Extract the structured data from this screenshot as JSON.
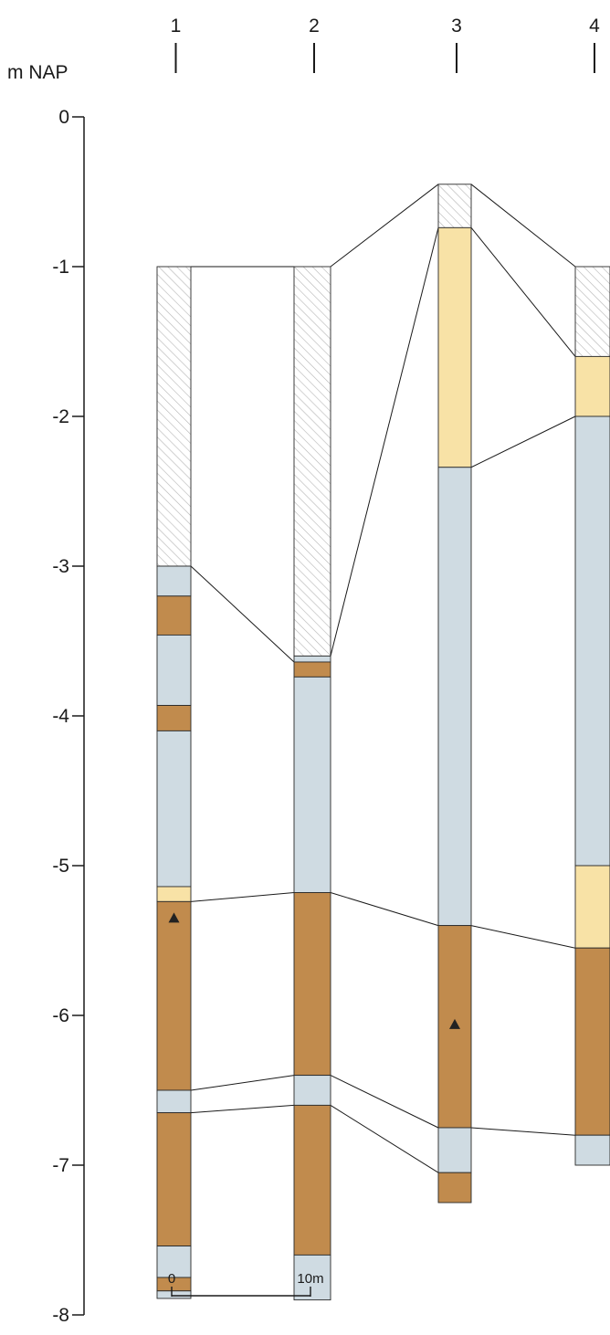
{
  "axis": {
    "unit": "m NAP",
    "ticks": [
      {
        "value": 0,
        "label": "0"
      },
      {
        "value": -1,
        "label": "-1"
      },
      {
        "value": -2,
        "label": "-2"
      },
      {
        "value": -3,
        "label": "-3"
      },
      {
        "value": -4,
        "label": "-4"
      },
      {
        "value": -5,
        "label": "-5"
      },
      {
        "value": -6,
        "label": "-6"
      },
      {
        "value": -7,
        "label": "-7"
      },
      {
        "value": -8,
        "label": "-8"
      }
    ]
  },
  "colors": {
    "hatched": "#ffffff",
    "hatch_line": "#b8b8b8",
    "sand_yellow": "#f8e2a6",
    "clay_blue": "#cfdbe2",
    "peat_brown": "#c18b4d",
    "outline": "#2a2a2a"
  },
  "borings": [
    {
      "label": "1",
      "layers": [
        {
          "top": -1.0,
          "bottom": -3.0,
          "type": "hatched"
        },
        {
          "top": -3.0,
          "bottom": -3.2,
          "type": "clay_blue"
        },
        {
          "top": -3.2,
          "bottom": -3.46,
          "type": "peat_brown"
        },
        {
          "top": -3.46,
          "bottom": -3.93,
          "type": "clay_blue"
        },
        {
          "top": -3.93,
          "bottom": -4.1,
          "type": "peat_brown"
        },
        {
          "top": -4.1,
          "bottom": -5.14,
          "type": "clay_blue"
        },
        {
          "top": -5.14,
          "bottom": -5.24,
          "type": "sand_yellow"
        },
        {
          "top": -5.24,
          "bottom": -6.5,
          "type": "peat_brown"
        },
        {
          "top": -6.5,
          "bottom": -6.65,
          "type": "clay_blue"
        },
        {
          "top": -6.65,
          "bottom": -7.54,
          "type": "peat_brown"
        },
        {
          "top": -7.54,
          "bottom": -7.75,
          "type": "clay_blue"
        },
        {
          "top": -7.75,
          "bottom": -7.84,
          "type": "peat_brown"
        },
        {
          "top": -7.84,
          "bottom": -7.89,
          "type": "clay_blue"
        }
      ],
      "markers": [
        -5.35
      ]
    },
    {
      "label": "2",
      "layers": [
        {
          "top": -1.0,
          "bottom": -3.6,
          "type": "hatched"
        },
        {
          "top": -3.6,
          "bottom": -3.64,
          "type": "clay_blue"
        },
        {
          "top": -3.64,
          "bottom": -3.74,
          "type": "peat_brown"
        },
        {
          "top": -3.74,
          "bottom": -5.18,
          "type": "clay_blue"
        },
        {
          "top": -5.18,
          "bottom": -6.4,
          "type": "peat_brown"
        },
        {
          "top": -6.4,
          "bottom": -6.6,
          "type": "clay_blue"
        },
        {
          "top": -6.6,
          "bottom": -7.6,
          "type": "peat_brown"
        },
        {
          "top": -7.6,
          "bottom": -7.9,
          "type": "clay_blue"
        }
      ],
      "markers": []
    },
    {
      "label": "3",
      "layers": [
        {
          "top": -0.45,
          "bottom": -0.74,
          "type": "hatched"
        },
        {
          "top": -0.74,
          "bottom": -2.34,
          "type": "sand_yellow"
        },
        {
          "top": -2.34,
          "bottom": -5.4,
          "type": "clay_blue"
        },
        {
          "top": -5.4,
          "bottom": -6.75,
          "type": "peat_brown"
        },
        {
          "top": -6.75,
          "bottom": -7.05,
          "type": "clay_blue"
        },
        {
          "top": -7.05,
          "bottom": -7.25,
          "type": "peat_brown"
        }
      ],
      "markers": [
        -6.06
      ]
    },
    {
      "label": "4",
      "layers": [
        {
          "top": -1.0,
          "bottom": -1.6,
          "type": "hatched"
        },
        {
          "top": -1.6,
          "bottom": -2.0,
          "type": "sand_yellow"
        },
        {
          "top": -2.0,
          "bottom": -5.0,
          "type": "clay_blue"
        },
        {
          "top": -5.0,
          "bottom": -5.55,
          "type": "sand_yellow"
        },
        {
          "top": -5.55,
          "bottom": -6.8,
          "type": "peat_brown"
        },
        {
          "top": -6.8,
          "bottom": -7.0,
          "type": "clay_blue"
        }
      ],
      "markers": []
    }
  ],
  "correlation_lines": [
    {
      "from": {
        "boring": 0,
        "depth": -1.0
      },
      "to": {
        "boring": 1,
        "depth": -1.0
      }
    },
    {
      "from": {
        "boring": 1,
        "depth": -1.0
      },
      "to": {
        "boring": 2,
        "depth": -0.45
      }
    },
    {
      "from": {
        "boring": 2,
        "depth": -0.45
      },
      "to": {
        "boring": 3,
        "depth": -1.0
      }
    },
    {
      "from": {
        "boring": 0,
        "depth": -3.0
      },
      "to": {
        "boring": 1,
        "depth": -3.64
      }
    },
    {
      "from": {
        "boring": 1,
        "depth": -3.6
      },
      "to": {
        "boring": 2,
        "depth": -0.74
      }
    },
    {
      "from": {
        "boring": 2,
        "depth": -0.74
      },
      "to": {
        "boring": 3,
        "depth": -1.6
      }
    },
    {
      "from": {
        "boring": 2,
        "depth": -2.34
      },
      "to": {
        "boring": 3,
        "depth": -2.0
      }
    },
    {
      "from": {
        "boring": 0,
        "depth": -5.24
      },
      "to": {
        "boring": 1,
        "depth": -5.18
      }
    },
    {
      "from": {
        "boring": 1,
        "depth": -5.18
      },
      "to": {
        "boring": 2,
        "depth": -5.4
      }
    },
    {
      "from": {
        "boring": 2,
        "depth": -5.4
      },
      "to": {
        "boring": 3,
        "depth": -5.55
      }
    },
    {
      "from": {
        "boring": 0,
        "depth": -6.5
      },
      "to": {
        "boring": 1,
        "depth": -6.4
      }
    },
    {
      "from": {
        "boring": 0,
        "depth": -6.65
      },
      "to": {
        "boring": 1,
        "depth": -6.6
      }
    },
    {
      "from": {
        "boring": 1,
        "depth": -6.4
      },
      "to": {
        "boring": 2,
        "depth": -6.75
      }
    },
    {
      "from": {
        "boring": 1,
        "depth": -6.6
      },
      "to": {
        "boring": 2,
        "depth": -7.05
      }
    },
    {
      "from": {
        "boring": 2,
        "depth": -6.75
      },
      "to": {
        "boring": 3,
        "depth": -6.8
      }
    }
  ],
  "scale_bar": {
    "start_label": "0",
    "end_label": "10m"
  }
}
